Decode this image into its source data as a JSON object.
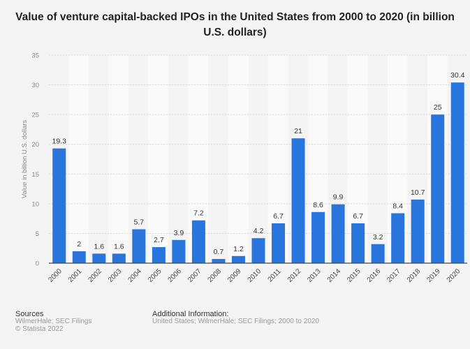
{
  "chart_data": {
    "type": "bar",
    "title": "Value of venture capital-backed IPOs in the United States from 2000 to 2020 (in billion U.S. dollars)",
    "xlabel": "",
    "ylabel": "Value in billion U.S. dollars",
    "ylim": [
      0,
      35
    ],
    "yticks": [
      "0",
      "5",
      "10",
      "15",
      "20",
      "25",
      "30",
      "35"
    ],
    "grid": true,
    "categories": [
      "2000",
      "2001",
      "2002",
      "2003",
      "2004",
      "2005",
      "2006",
      "2007",
      "2008",
      "2009",
      "2010",
      "2011",
      "2012",
      "2013",
      "2014",
      "2015",
      "2016",
      "2017",
      "2018",
      "2019",
      "2020"
    ],
    "values": [
      19.3,
      2,
      1.6,
      1.6,
      5.7,
      2.7,
      3.9,
      7.2,
      0.7,
      1.2,
      4.2,
      6.7,
      21,
      8.6,
      9.9,
      6.7,
      3.2,
      8.4,
      10.7,
      25,
      30.4
    ],
    "bar_color": "#2876dd"
  },
  "footer": {
    "sources_heading": "Sources",
    "sources": "WilmerHale; SEC Filings",
    "copyright": "© Statista 2022",
    "additional_heading": "Additional Information:",
    "additional": "United States; WilmerHale; SEC Filings; 2000 to 2020"
  }
}
